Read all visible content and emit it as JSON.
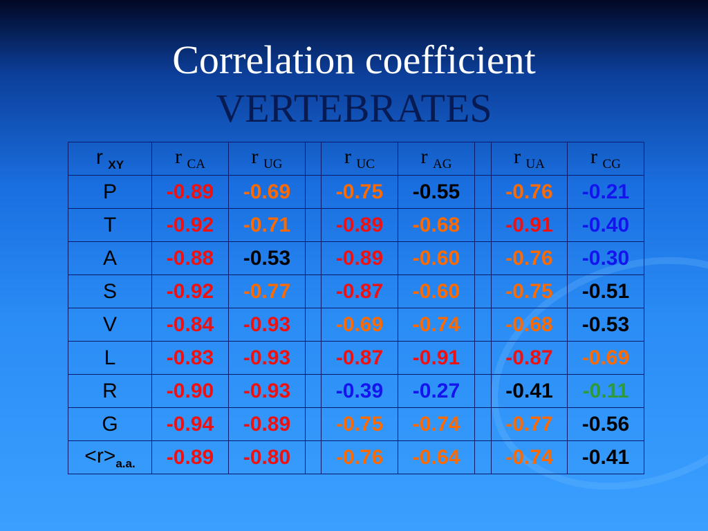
{
  "title": {
    "line1": "Correlation coefficient",
    "line2": "VERTEBRATES"
  },
  "table": {
    "header": [
      {
        "main": "r",
        "sub": "XY"
      },
      {
        "main": "r",
        "sub": "CA"
      },
      {
        "main": "r",
        "sub": "UG"
      },
      {
        "main": "r",
        "sub": "UC"
      },
      {
        "main": "r",
        "sub": "AG"
      },
      {
        "main": "r",
        "sub": "UA"
      },
      {
        "main": "r",
        "sub": "CG"
      }
    ],
    "rows": [
      {
        "label": "P",
        "cells": [
          {
            "text": "-0.89",
            "color": "#ee1111"
          },
          {
            "text": "-0.69",
            "color": "#ff6a00"
          },
          {
            "text": "-0.75",
            "color": "#ff6a00"
          },
          {
            "text": "-0.55",
            "color": "#000000"
          },
          {
            "text": "-0.76",
            "color": "#ff6a00"
          },
          {
            "text": "-0.21",
            "color": "#1414ee"
          }
        ]
      },
      {
        "label": "T",
        "cells": [
          {
            "text": "-0.92",
            "color": "#ee1111"
          },
          {
            "text": "-0.71",
            "color": "#ff6a00"
          },
          {
            "text": "-0.89",
            "color": "#ee1111"
          },
          {
            "text": "-0.68",
            "color": "#ff6a00"
          },
          {
            "text": "-0.91",
            "color": "#ee1111"
          },
          {
            "text": "-0.40",
            "color": "#1414ee"
          }
        ]
      },
      {
        "label": "A",
        "cells": [
          {
            "text": "-0.88",
            "color": "#ee1111"
          },
          {
            "text": "-0.53",
            "color": "#000000"
          },
          {
            "text": "-0.89",
            "color": "#ee1111"
          },
          {
            "text": "-0.60",
            "color": "#ff6a00"
          },
          {
            "text": "-0.76",
            "color": "#ff6a00"
          },
          {
            "text": "-0.30",
            "color": "#1414ee"
          }
        ]
      },
      {
        "label": "S",
        "cells": [
          {
            "text": "-0.92",
            "color": "#ee1111"
          },
          {
            "text": "-0.77",
            "color": "#ff6a00"
          },
          {
            "text": "-0.87",
            "color": "#ee1111"
          },
          {
            "text": "-0.60",
            "color": "#ff6a00"
          },
          {
            "text": "-0.75",
            "color": "#ff6a00"
          },
          {
            "text": "-0.51",
            "color": "#000000"
          }
        ]
      },
      {
        "label": "V",
        "cells": [
          {
            "text": "-0.84",
            "color": "#ee1111"
          },
          {
            "text": "-0.93",
            "color": "#ee1111"
          },
          {
            "text": "-0.69",
            "color": "#ff6a00"
          },
          {
            "text": "-0.74",
            "color": "#ff6a00"
          },
          {
            "text": "-0.68",
            "color": "#ff6a00"
          },
          {
            "text": "-0.53",
            "color": "#000000"
          }
        ]
      },
      {
        "label": "L",
        "cells": [
          {
            "text": "-0.83",
            "color": "#ee1111"
          },
          {
            "text": "-0.93",
            "color": "#ee1111"
          },
          {
            "text": "-0.87",
            "color": "#ee1111"
          },
          {
            "text": "-0.91",
            "color": "#ee1111"
          },
          {
            "text": "-0.87",
            "color": "#ee1111"
          },
          {
            "text": "-0.69",
            "color": "#ff6a00"
          }
        ]
      },
      {
        "label": "R",
        "cells": [
          {
            "text": "-0.90",
            "color": "#ee1111"
          },
          {
            "text": "-0.93",
            "color": "#ee1111"
          },
          {
            "text": "-0.39",
            "color": "#1414ee"
          },
          {
            "text": "-0.27",
            "color": "#1414ee"
          },
          {
            "text": "-0.41",
            "color": "#000000"
          },
          {
            "text": "-0.11",
            "color": "#2e9a3a"
          }
        ]
      },
      {
        "label": "G",
        "cells": [
          {
            "text": "-0.94",
            "color": "#ee1111"
          },
          {
            "text": "-0.89",
            "color": "#ee1111"
          },
          {
            "text": "-0.75",
            "color": "#ff6a00"
          },
          {
            "text": "-0.74",
            "color": "#ff6a00"
          },
          {
            "text": "-0.77",
            "color": "#ff6a00"
          },
          {
            "text": "-0.56",
            "color": "#000000"
          }
        ]
      },
      {
        "label": "<r>",
        "label_sub": "a.a.",
        "cells": [
          {
            "text": "-0.89",
            "color": "#ee1111"
          },
          {
            "text": "-0.80",
            "color": "#ee1111"
          },
          {
            "text": "-0.76",
            "color": "#ff6a00"
          },
          {
            "text": "-0.64",
            "color": "#ff6a00"
          },
          {
            "text": "-0.74",
            "color": "#ff6a00"
          },
          {
            "text": "-0.41",
            "color": "#000000"
          }
        ]
      }
    ]
  }
}
